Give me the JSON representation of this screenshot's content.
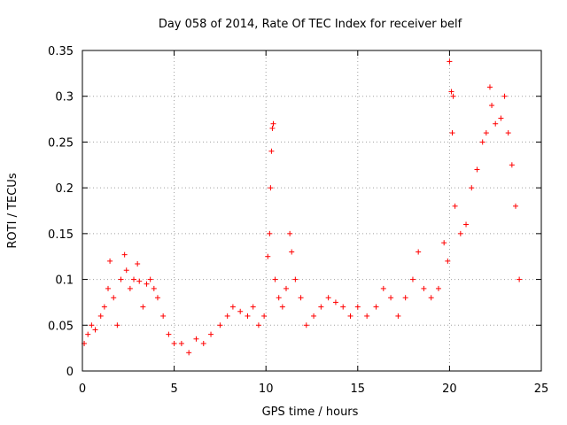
{
  "chart_data": {
    "type": "scatter",
    "title": "Day 058 of 2014, Rate Of TEC Index for receiver belf",
    "xlabel": "GPS time / hours",
    "ylabel": "ROTI / TECUs",
    "xlim": [
      0,
      25
    ],
    "ylim": [
      0,
      0.35
    ],
    "x_ticks": [
      0,
      5,
      10,
      15,
      20,
      25
    ],
    "y_ticks": [
      0,
      0.05,
      0.1,
      0.15,
      0.2,
      0.25,
      0.3,
      0.35
    ],
    "x_tick_labels": [
      "0",
      "5",
      "10",
      "15",
      "20",
      "25"
    ],
    "y_tick_labels": [
      "0",
      "0.05",
      "0.1",
      "0.15",
      "0.2",
      "0.25",
      "0.3",
      "0.35"
    ],
    "grid": true,
    "marker": "+",
    "color": "#ff0000",
    "series": [
      {
        "name": "ROTI",
        "points": [
          [
            0.1,
            0.03
          ],
          [
            0.3,
            0.04
          ],
          [
            0.5,
            0.05
          ],
          [
            0.7,
            0.045
          ],
          [
            1.0,
            0.06
          ],
          [
            1.2,
            0.07
          ],
          [
            1.4,
            0.09
          ],
          [
            1.5,
            0.12
          ],
          [
            1.7,
            0.08
          ],
          [
            1.9,
            0.05
          ],
          [
            2.1,
            0.1
          ],
          [
            2.3,
            0.127
          ],
          [
            2.4,
            0.11
          ],
          [
            2.6,
            0.09
          ],
          [
            2.8,
            0.1
          ],
          [
            3.0,
            0.117
          ],
          [
            3.1,
            0.098
          ],
          [
            3.3,
            0.07
          ],
          [
            3.5,
            0.095
          ],
          [
            3.7,
            0.1
          ],
          [
            3.9,
            0.09
          ],
          [
            4.1,
            0.08
          ],
          [
            4.4,
            0.06
          ],
          [
            4.7,
            0.04
          ],
          [
            5.0,
            0.03
          ],
          [
            5.4,
            0.03
          ],
          [
            5.8,
            0.02
          ],
          [
            6.2,
            0.035
          ],
          [
            6.6,
            0.03
          ],
          [
            7.0,
            0.04
          ],
          [
            7.5,
            0.05
          ],
          [
            7.9,
            0.06
          ],
          [
            8.2,
            0.07
          ],
          [
            8.6,
            0.065
          ],
          [
            9.0,
            0.06
          ],
          [
            9.3,
            0.07
          ],
          [
            9.6,
            0.05
          ],
          [
            9.9,
            0.06
          ],
          [
            10.1,
            0.125
          ],
          [
            10.2,
            0.15
          ],
          [
            10.25,
            0.2
          ],
          [
            10.3,
            0.24
          ],
          [
            10.35,
            0.265
          ],
          [
            10.4,
            0.27
          ],
          [
            10.5,
            0.1
          ],
          [
            10.7,
            0.08
          ],
          [
            10.9,
            0.07
          ],
          [
            11.1,
            0.09
          ],
          [
            11.3,
            0.15
          ],
          [
            11.4,
            0.13
          ],
          [
            11.6,
            0.1
          ],
          [
            11.9,
            0.08
          ],
          [
            12.2,
            0.05
          ],
          [
            12.6,
            0.06
          ],
          [
            13.0,
            0.07
          ],
          [
            13.4,
            0.08
          ],
          [
            13.8,
            0.075
          ],
          [
            14.2,
            0.07
          ],
          [
            14.6,
            0.06
          ],
          [
            15.0,
            0.07
          ],
          [
            15.5,
            0.06
          ],
          [
            16.0,
            0.07
          ],
          [
            16.4,
            0.09
          ],
          [
            16.8,
            0.08
          ],
          [
            17.2,
            0.06
          ],
          [
            17.6,
            0.08
          ],
          [
            18.0,
            0.1
          ],
          [
            18.3,
            0.13
          ],
          [
            18.6,
            0.09
          ],
          [
            19.0,
            0.08
          ],
          [
            19.4,
            0.09
          ],
          [
            19.7,
            0.14
          ],
          [
            19.9,
            0.12
          ],
          [
            20.0,
            0.338
          ],
          [
            20.1,
            0.305
          ],
          [
            20.2,
            0.3
          ],
          [
            20.15,
            0.26
          ],
          [
            20.3,
            0.18
          ],
          [
            20.6,
            0.15
          ],
          [
            20.9,
            0.16
          ],
          [
            21.2,
            0.2
          ],
          [
            21.5,
            0.22
          ],
          [
            21.8,
            0.25
          ],
          [
            22.0,
            0.26
          ],
          [
            22.2,
            0.31
          ],
          [
            22.3,
            0.29
          ],
          [
            22.5,
            0.27
          ],
          [
            22.8,
            0.276
          ],
          [
            23.0,
            0.3
          ],
          [
            23.2,
            0.26
          ],
          [
            23.4,
            0.225
          ],
          [
            23.6,
            0.18
          ],
          [
            23.8,
            0.1
          ]
        ]
      }
    ]
  }
}
